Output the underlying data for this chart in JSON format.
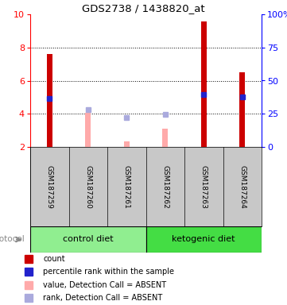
{
  "title": "GDS2738 / 1438820_at",
  "samples": [
    "GSM187259",
    "GSM187260",
    "GSM187261",
    "GSM187262",
    "GSM187263",
    "GSM187264"
  ],
  "red_bars_idx": [
    0,
    4,
    5
  ],
  "red_bars_vals": [
    7.6,
    9.55,
    6.5
  ],
  "red_bar_color": "#CC0000",
  "blue_sq_idx": [
    0,
    4,
    5
  ],
  "blue_sq_vals": [
    4.9,
    5.15,
    5.0
  ],
  "blue_sq_color": "#2222CC",
  "pink_bars_idx": [
    1,
    2,
    3
  ],
  "pink_bars_vals": [
    4.05,
    2.35,
    3.1
  ],
  "pink_bar_color": "#FFAAAA",
  "lav_sq_idx": [
    1,
    2,
    3
  ],
  "lav_sq_vals": [
    4.25,
    3.75,
    3.95
  ],
  "lav_sq_color": "#AAAADD",
  "ylim_left": [
    2,
    10
  ],
  "yticks_left": [
    2,
    4,
    6,
    8,
    10
  ],
  "ylim_right": [
    0,
    100
  ],
  "yticks_right": [
    0,
    25,
    50,
    75,
    100
  ],
  "yticklabels_right": [
    "0",
    "25",
    "50",
    "75",
    "100%"
  ],
  "bar_bottom": 2.0,
  "ctrl_color": "#90EE90",
  "keto_color": "#44DD44",
  "label_bg": "#C8C8C8",
  "bg_color": "#FFFFFF",
  "legend_items": [
    {
      "color": "#CC0000",
      "label": "count"
    },
    {
      "color": "#2222CC",
      "label": "percentile rank within the sample"
    },
    {
      "color": "#FFAAAA",
      "label": "value, Detection Call = ABSENT"
    },
    {
      "color": "#AAAADD",
      "label": "rank, Detection Call = ABSENT"
    }
  ],
  "figsize": [
    3.61,
    3.84
  ],
  "dpi": 100
}
